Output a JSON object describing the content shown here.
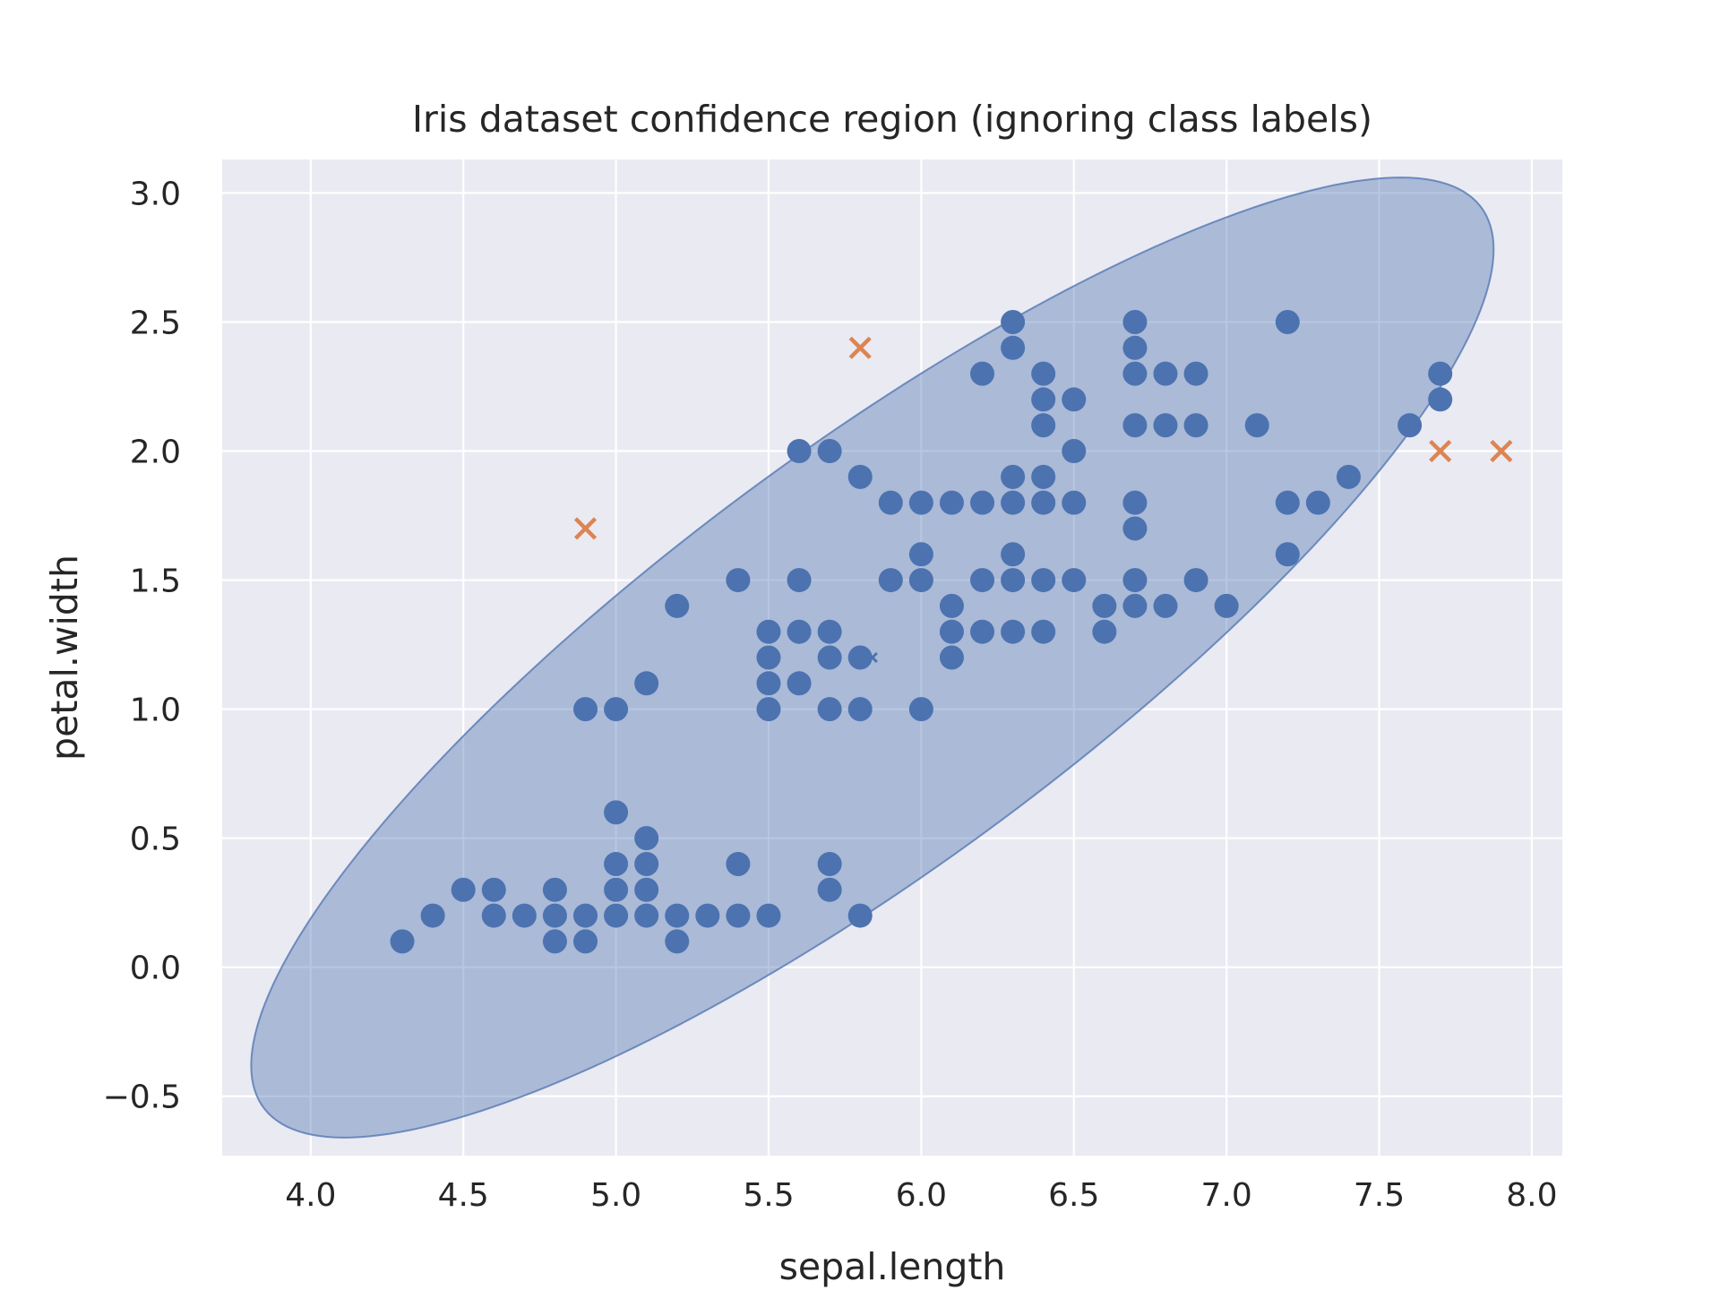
{
  "chart_data": {
    "type": "scatter",
    "title": "Iris dataset confidence region (ignoring class labels)",
    "xlabel": "sepal.length",
    "ylabel": "petal.width",
    "xlim": [
      3.71,
      8.1
    ],
    "ylim": [
      -0.73,
      3.13
    ],
    "x_ticks": [
      4.0,
      4.5,
      5.0,
      5.5,
      6.0,
      6.5,
      7.0,
      7.5,
      8.0
    ],
    "x_tick_labels": [
      "4.0",
      "4.5",
      "5.0",
      "5.5",
      "6.0",
      "6.5",
      "7.0",
      "7.5",
      "8.0"
    ],
    "y_ticks": [
      -0.5,
      0.0,
      0.5,
      1.0,
      1.5,
      2.0,
      2.5,
      3.0
    ],
    "y_tick_labels": [
      "−0.5",
      "0.0",
      "0.5",
      "1.0",
      "1.5",
      "2.0",
      "2.5",
      "3.0"
    ],
    "grid": true,
    "background_color": "#eaeaf2",
    "series": [
      {
        "marker": "circle",
        "color": "#4c72b0",
        "points": [
          [
            4.3,
            0.1
          ],
          [
            4.4,
            0.2
          ],
          [
            4.5,
            0.3
          ],
          [
            4.6,
            0.3
          ],
          [
            4.6,
            0.2
          ],
          [
            4.7,
            0.2
          ],
          [
            4.8,
            0.3
          ],
          [
            4.8,
            0.2
          ],
          [
            4.8,
            0.1
          ],
          [
            4.9,
            0.2
          ],
          [
            4.9,
            0.1
          ],
          [
            4.9,
            1.0
          ],
          [
            5.0,
            0.6
          ],
          [
            5.0,
            0.4
          ],
          [
            5.0,
            0.3
          ],
          [
            5.0,
            0.2
          ],
          [
            5.0,
            1.0
          ],
          [
            5.1,
            0.5
          ],
          [
            5.1,
            0.4
          ],
          [
            5.1,
            0.3
          ],
          [
            5.1,
            0.2
          ],
          [
            5.1,
            1.1
          ],
          [
            5.2,
            1.4
          ],
          [
            5.2,
            0.2
          ],
          [
            5.2,
            0.1
          ],
          [
            5.3,
            0.2
          ],
          [
            5.4,
            1.5
          ],
          [
            5.4,
            0.4
          ],
          [
            5.4,
            0.2
          ],
          [
            5.5,
            1.3
          ],
          [
            5.5,
            1.2
          ],
          [
            5.5,
            1.1
          ],
          [
            5.5,
            1.0
          ],
          [
            5.5,
            0.2
          ],
          [
            5.6,
            2.0
          ],
          [
            5.6,
            1.5
          ],
          [
            5.6,
            1.3
          ],
          [
            5.6,
            1.1
          ],
          [
            5.7,
            2.0
          ],
          [
            5.7,
            1.3
          ],
          [
            5.7,
            1.2
          ],
          [
            5.7,
            1.0
          ],
          [
            5.7,
            0.4
          ],
          [
            5.7,
            0.3
          ],
          [
            5.8,
            1.9
          ],
          [
            5.8,
            1.2
          ],
          [
            5.8,
            1.0
          ],
          [
            5.8,
            0.2
          ],
          [
            5.9,
            1.8
          ],
          [
            5.9,
            1.5
          ],
          [
            6.0,
            1.8
          ],
          [
            6.0,
            1.6
          ],
          [
            6.0,
            1.5
          ],
          [
            6.0,
            1.0
          ],
          [
            6.1,
            1.8
          ],
          [
            6.1,
            1.4
          ],
          [
            6.1,
            1.3
          ],
          [
            6.1,
            1.2
          ],
          [
            6.2,
            2.3
          ],
          [
            6.2,
            1.8
          ],
          [
            6.2,
            1.5
          ],
          [
            6.2,
            1.3
          ],
          [
            6.3,
            2.5
          ],
          [
            6.3,
            2.4
          ],
          [
            6.3,
            1.9
          ],
          [
            6.3,
            1.8
          ],
          [
            6.3,
            1.6
          ],
          [
            6.3,
            1.5
          ],
          [
            6.3,
            1.3
          ],
          [
            6.4,
            2.3
          ],
          [
            6.4,
            2.2
          ],
          [
            6.4,
            2.1
          ],
          [
            6.4,
            1.9
          ],
          [
            6.4,
            1.8
          ],
          [
            6.4,
            1.5
          ],
          [
            6.4,
            1.3
          ],
          [
            6.5,
            2.2
          ],
          [
            6.5,
            2.0
          ],
          [
            6.5,
            1.8
          ],
          [
            6.5,
            1.5
          ],
          [
            6.6,
            1.4
          ],
          [
            6.6,
            1.3
          ],
          [
            6.7,
            2.5
          ],
          [
            6.7,
            2.4
          ],
          [
            6.7,
            2.3
          ],
          [
            6.7,
            2.1
          ],
          [
            6.7,
            1.8
          ],
          [
            6.7,
            1.7
          ],
          [
            6.7,
            1.5
          ],
          [
            6.7,
            1.4
          ],
          [
            6.8,
            2.3
          ],
          [
            6.8,
            2.1
          ],
          [
            6.8,
            1.4
          ],
          [
            6.9,
            2.3
          ],
          [
            6.9,
            2.1
          ],
          [
            6.9,
            1.5
          ],
          [
            7.0,
            1.4
          ],
          [
            7.1,
            2.1
          ],
          [
            7.2,
            2.5
          ],
          [
            7.2,
            1.8
          ],
          [
            7.2,
            1.6
          ],
          [
            7.3,
            1.8
          ],
          [
            7.4,
            1.9
          ],
          [
            7.6,
            2.1
          ],
          [
            7.7,
            2.3
          ],
          [
            7.7,
            2.2
          ]
        ]
      },
      {
        "marker": "x",
        "color": "#dd8452",
        "points": [
          [
            4.9,
            1.7
          ],
          [
            5.8,
            2.4
          ],
          [
            7.7,
            2.0
          ],
          [
            7.9,
            2.0
          ]
        ]
      }
    ],
    "center": {
      "marker": "x-small",
      "color": "#4c72b0",
      "point": [
        5.84,
        1.2
      ]
    },
    "confidence_ellipse": {
      "center": [
        5.84,
        1.2
      ],
      "x_range": [
        3.8,
        7.87
      ],
      "y_range": [
        -0.66,
        3.06
      ],
      "fill_color": "#4c72b0",
      "opacity": 0.4
    }
  }
}
